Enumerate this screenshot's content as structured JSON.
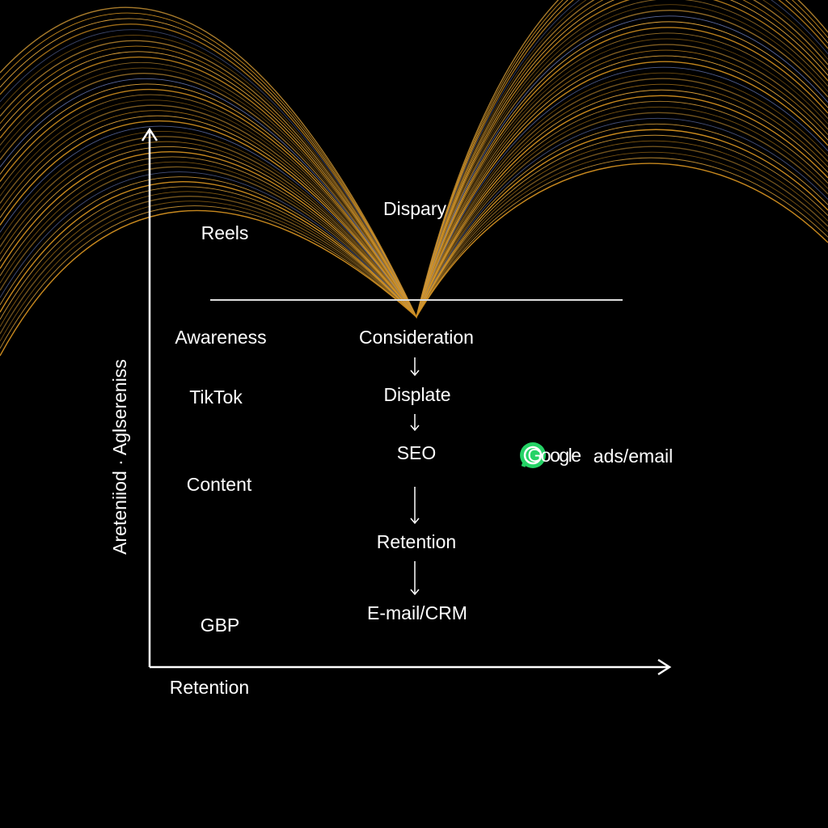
{
  "header": {
    "title": "Dispary"
  },
  "axes": {
    "y_label": "Areteniiod · Aglsereniss",
    "x_label": "Retention"
  },
  "left_column": [
    "Reels",
    "Awareness",
    "TikTok",
    "Content",
    "GBP"
  ],
  "funnel": [
    "Consideration",
    "Displate",
    "SEO",
    "Retention",
    "E-mail/CRM"
  ],
  "side_label": {
    "brand": "Google",
    "text": "ads/email"
  }
}
